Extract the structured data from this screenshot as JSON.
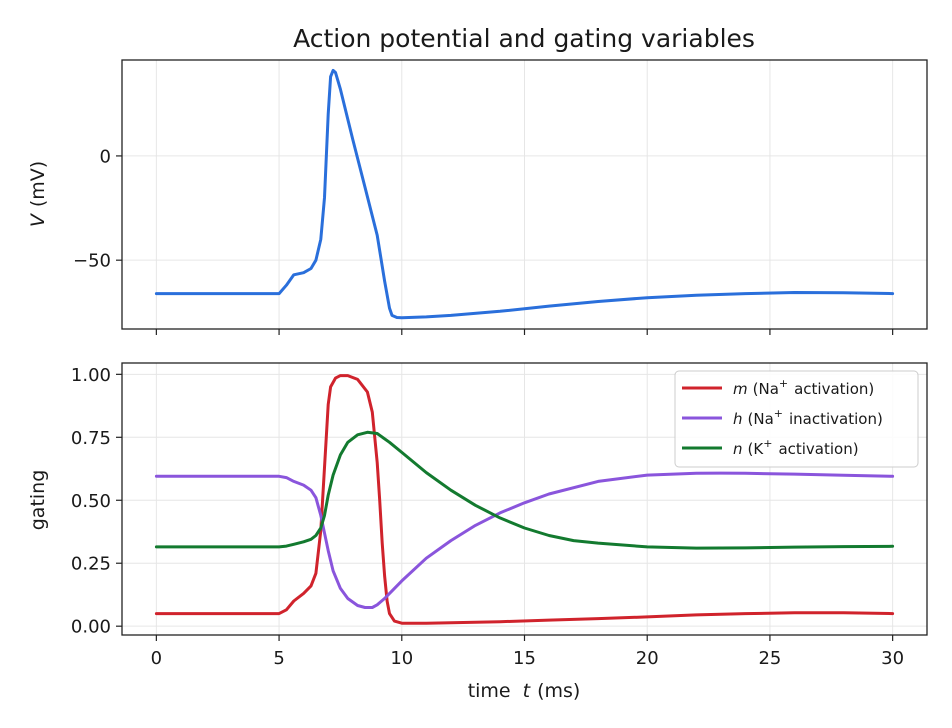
{
  "chart_data": [
    {
      "type": "line",
      "title": "Action potential and gating variables",
      "ylabel_var": "V",
      "ylabel_unit": "(mV)",
      "xlim": [
        -1.4,
        31.4
      ],
      "ylim": [
        -83,
        46
      ],
      "xticks": [
        0,
        5,
        10,
        15,
        20,
        25,
        30
      ],
      "yticks": [
        0,
        -50
      ],
      "ytick_labels": [
        "0",
        "−50"
      ],
      "grid": true,
      "series": [
        {
          "name": "V",
          "color": "#2a6fdb",
          "x": [
            0,
            5,
            5.3,
            5.6,
            6.0,
            6.3,
            6.5,
            6.7,
            6.85,
            7.0,
            7.1,
            7.2,
            7.3,
            7.5,
            8.0,
            8.5,
            9.0,
            9.3,
            9.5,
            9.6,
            9.8,
            10,
            11,
            12,
            14,
            16,
            18,
            20,
            22,
            24,
            26,
            28,
            30
          ],
          "y": [
            -66,
            -66,
            -62,
            -57,
            -56,
            -54,
            -50,
            -40,
            -20,
            20,
            38,
            41,
            40,
            32,
            8,
            -15,
            -38,
            -60,
            -73,
            -76.5,
            -77.5,
            -77.6,
            -77.2,
            -76.5,
            -74.5,
            -72,
            -69.8,
            -68,
            -66.8,
            -66,
            -65.5,
            -65.6,
            -66
          ]
        }
      ]
    },
    {
      "type": "line",
      "xlabel_prefix": "time",
      "xlabel_var": "t",
      "xlabel_unit": "(ms)",
      "ylabel": "gating",
      "xlim": [
        -1.4,
        31.4
      ],
      "ylim": [
        -0.035,
        1.045
      ],
      "xticks": [
        0,
        5,
        10,
        15,
        20,
        25,
        30
      ],
      "xtick_labels": [
        "0",
        "5",
        "10",
        "15",
        "20",
        "25",
        "30"
      ],
      "yticks": [
        0.0,
        0.25,
        0.5,
        0.75,
        1.0
      ],
      "ytick_labels": [
        "0.00",
        "0.25",
        "0.50",
        "0.75",
        "1.00"
      ],
      "grid": true,
      "legend_position": "top-right",
      "series": [
        {
          "name": "m (Na+ activation)",
          "legend_var": "m",
          "legend_open": "(Na",
          "legend_sup": "+",
          "legend_rest": "activation)",
          "color": "#d0232c",
          "x": [
            0,
            5,
            5.3,
            5.6,
            6.0,
            6.3,
            6.5,
            6.7,
            6.85,
            7.0,
            7.1,
            7.3,
            7.5,
            7.8,
            8.2,
            8.6,
            8.8,
            9.0,
            9.1,
            9.2,
            9.3,
            9.4,
            9.5,
            9.7,
            10,
            11,
            12,
            14,
            16,
            18,
            20,
            22,
            24,
            26,
            28,
            30
          ],
          "y": [
            0.05,
            0.05,
            0.065,
            0.1,
            0.13,
            0.16,
            0.21,
            0.38,
            0.63,
            0.88,
            0.95,
            0.985,
            0.995,
            0.995,
            0.98,
            0.93,
            0.85,
            0.65,
            0.5,
            0.33,
            0.2,
            0.1,
            0.05,
            0.02,
            0.012,
            0.012,
            0.014,
            0.018,
            0.024,
            0.03,
            0.037,
            0.045,
            0.05,
            0.053,
            0.053,
            0.05
          ]
        },
        {
          "name": "h (Na+ inactivation)",
          "legend_var": "h",
          "legend_open": "(Na",
          "legend_sup": "+",
          "legend_rest": "inactivation)",
          "color": "#8a55dc",
          "x": [
            0,
            5,
            5.3,
            5.6,
            6.0,
            6.3,
            6.5,
            6.7,
            6.85,
            7.0,
            7.2,
            7.5,
            7.8,
            8.2,
            8.5,
            8.8,
            9.0,
            9.3,
            9.6,
            10,
            11,
            12,
            13,
            14,
            15,
            16,
            18,
            20,
            22,
            23,
            24,
            26,
            28,
            30
          ],
          "y": [
            0.595,
            0.595,
            0.59,
            0.575,
            0.56,
            0.54,
            0.51,
            0.44,
            0.37,
            0.3,
            0.22,
            0.15,
            0.11,
            0.082,
            0.074,
            0.074,
            0.085,
            0.11,
            0.14,
            0.18,
            0.27,
            0.34,
            0.4,
            0.45,
            0.49,
            0.525,
            0.575,
            0.6,
            0.607,
            0.608,
            0.607,
            0.604,
            0.599,
            0.595
          ]
        },
        {
          "name": "n (K+ activation)",
          "legend_var": "n",
          "legend_open": "(K",
          "legend_sup": "+",
          "legend_rest": "activation)",
          "color": "#137a2f",
          "x": [
            0,
            5,
            5.3,
            5.6,
            6.0,
            6.3,
            6.5,
            6.7,
            6.85,
            7.0,
            7.2,
            7.5,
            7.8,
            8.2,
            8.6,
            9.0,
            9.5,
            10,
            11,
            12,
            13,
            14,
            15,
            16,
            17,
            18,
            20,
            22,
            24,
            26,
            28,
            30
          ],
          "y": [
            0.315,
            0.315,
            0.318,
            0.325,
            0.335,
            0.345,
            0.36,
            0.39,
            0.44,
            0.52,
            0.6,
            0.68,
            0.73,
            0.76,
            0.77,
            0.765,
            0.73,
            0.69,
            0.61,
            0.54,
            0.48,
            0.43,
            0.39,
            0.36,
            0.34,
            0.33,
            0.315,
            0.31,
            0.311,
            0.314,
            0.316,
            0.317
          ]
        }
      ]
    }
  ]
}
